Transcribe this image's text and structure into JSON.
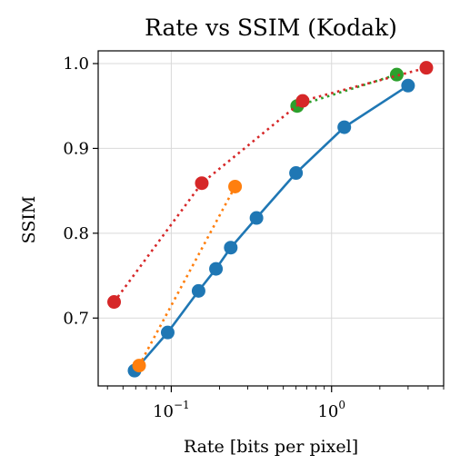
{
  "chart_data": {
    "type": "line",
    "title": "Rate vs SSIM (Kodak)",
    "xlabel": "Rate [bits per pixel]",
    "ylabel": "SSIM",
    "xscale": "log",
    "xlim": [
      0.035,
      5.0
    ],
    "ylim": [
      0.62,
      1.015
    ],
    "grid": true,
    "x_ticks": [
      {
        "value": 0.1,
        "base": "10",
        "exp": "−1"
      },
      {
        "value": 1,
        "base": "10",
        "exp": "0"
      }
    ],
    "y_ticks": [
      {
        "value": 0.7,
        "label": "0.7"
      },
      {
        "value": 0.8,
        "label": "0.8"
      },
      {
        "value": 0.9,
        "label": "0.9"
      },
      {
        "value": 1.0,
        "label": "1.0"
      }
    ],
    "series": [
      {
        "color": "#1f77b4",
        "line_style": "solid",
        "points": [
          [
            0.059,
            0.638
          ],
          [
            0.095,
            0.683
          ],
          [
            0.148,
            0.732
          ],
          [
            0.19,
            0.758
          ],
          [
            0.235,
            0.783
          ],
          [
            0.34,
            0.818
          ],
          [
            0.6,
            0.871
          ],
          [
            1.2,
            0.925
          ],
          [
            3.0,
            0.974
          ]
        ]
      },
      {
        "color": "#ff7f0e",
        "line_style": "dotted",
        "points": [
          [
            0.063,
            0.644
          ],
          [
            0.25,
            0.855
          ]
        ]
      },
      {
        "color": "#2ca02c",
        "line_style": "dotted",
        "points": [
          [
            0.61,
            0.95
          ],
          [
            2.55,
            0.987
          ]
        ]
      },
      {
        "color": "#d62728",
        "line_style": "dotted",
        "points": [
          [
            0.044,
            0.719
          ],
          [
            0.155,
            0.859
          ],
          [
            0.66,
            0.956
          ],
          [
            3.9,
            0.995
          ]
        ]
      }
    ]
  }
}
